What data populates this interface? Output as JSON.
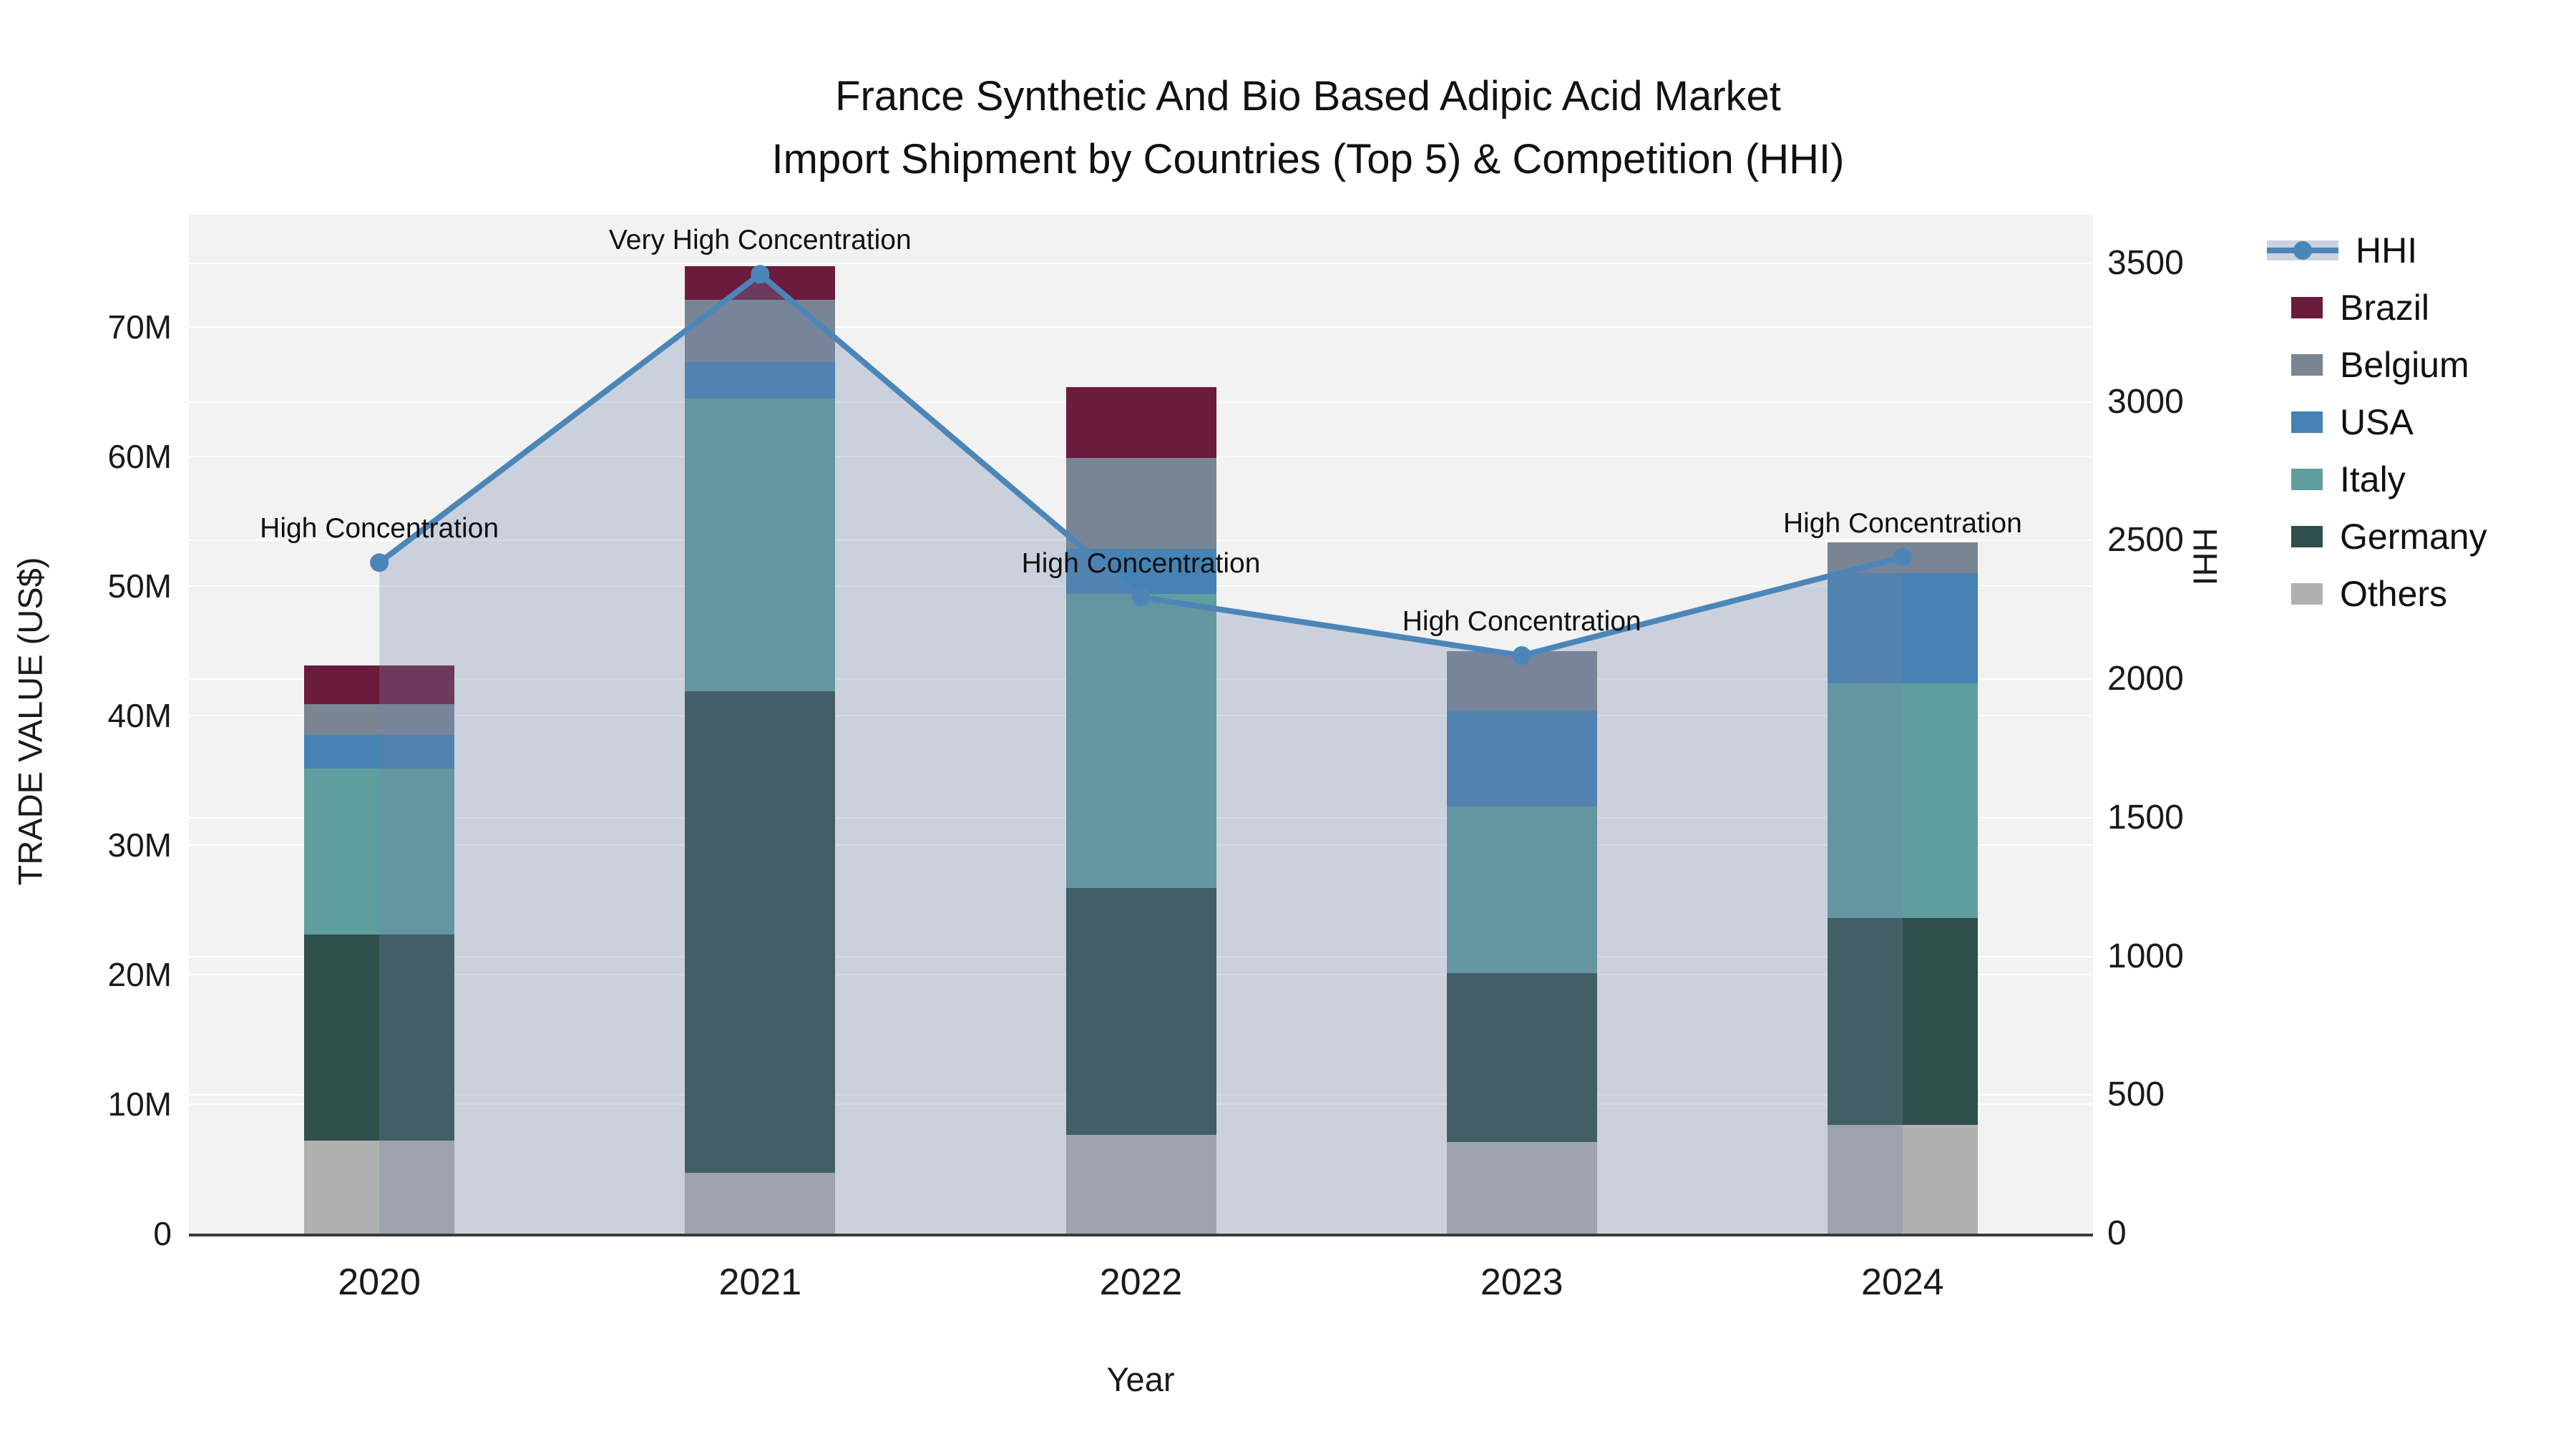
{
  "title": {
    "line1": "France Synthetic And Bio Based Adipic Acid Market",
    "line2": "Import Shipment by Countries (Top 5) & Competition (HHI)"
  },
  "axes": {
    "left": {
      "title": "TRADE VALUE (US$)",
      "ticks": [
        {
          "v": 0,
          "label": "0"
        },
        {
          "v": 10,
          "label": "10M"
        },
        {
          "v": 20,
          "label": "20M"
        },
        {
          "v": 30,
          "label": "30M"
        },
        {
          "v": 40,
          "label": "40M"
        },
        {
          "v": 50,
          "label": "50M"
        },
        {
          "v": 60,
          "label": "60M"
        },
        {
          "v": 70,
          "label": "70M"
        }
      ]
    },
    "right": {
      "title": "HHI",
      "ticks": [
        {
          "v": 0,
          "label": "0"
        },
        {
          "v": 500,
          "label": "500"
        },
        {
          "v": 1000,
          "label": "1000"
        },
        {
          "v": 1500,
          "label": "1500"
        },
        {
          "v": 2000,
          "label": "2000"
        },
        {
          "v": 2500,
          "label": "2500"
        },
        {
          "v": 3000,
          "label": "3000"
        },
        {
          "v": 3500,
          "label": "3500"
        }
      ]
    },
    "x": {
      "title": "Year"
    }
  },
  "chart_data": {
    "type": "bar",
    "subtype": "stacked bars (trade value, left axis) + HHI line with markers and area fill (right axis)",
    "categories": [
      "2020",
      "2021",
      "2022",
      "2023",
      "2024"
    ],
    "value_unit": "million US$",
    "series": [
      {
        "name": "Others",
        "color": "#b0b0b0",
        "values": [
          7.2,
          4.7,
          7.6,
          7.1,
          8.4
        ]
      },
      {
        "name": "Germany",
        "color": "#2f4f4c",
        "values": [
          15.9,
          37.2,
          19.1,
          13.0,
          16.0
        ]
      },
      {
        "name": "Italy",
        "color": "#5f9e9e",
        "values": [
          12.8,
          22.6,
          22.7,
          12.9,
          18.1
        ]
      },
      {
        "name": "USA",
        "color": "#4682b4",
        "values": [
          2.6,
          2.8,
          3.5,
          7.4,
          8.5
        ]
      },
      {
        "name": "Belgium",
        "color": "#7a8594",
        "values": [
          2.4,
          4.8,
          7.0,
          4.6,
          2.4
        ]
      },
      {
        "name": "Brazil",
        "color": "#6b1b3c",
        "values": [
          3.0,
          2.6,
          5.5,
          0,
          0
        ]
      }
    ],
    "bar_totals": [
      43.9,
      74.7,
      65.4,
      45.0,
      53.4
    ],
    "line": {
      "name": "HHI",
      "color": "#4c86b8",
      "area_color": "rgba(114,132,168,0.30)",
      "values": [
        2420,
        3460,
        2295,
        2085,
        2440
      ],
      "annotations": [
        "High Concentration",
        "Very High Concentration",
        "High Concentration",
        "High Concentration",
        "High Concentration"
      ]
    },
    "left_axis_range": [
      0,
      78.7
    ],
    "right_axis_range": [
      0,
      3675
    ],
    "grid": true,
    "legend_position": "right"
  },
  "legend": {
    "items": [
      {
        "label": "HHI",
        "type": "line",
        "color": "#4c86b8"
      },
      {
        "label": "Brazil",
        "type": "box",
        "color": "#6b1b3c"
      },
      {
        "label": "Belgium",
        "type": "box",
        "color": "#7a8594"
      },
      {
        "label": "USA",
        "type": "box",
        "color": "#4682b4"
      },
      {
        "label": "Italy",
        "type": "box",
        "color": "#5f9e9e"
      },
      {
        "label": "Germany",
        "type": "box",
        "color": "#2f4f4c"
      },
      {
        "label": "Others",
        "type": "box",
        "color": "#b0b0b0"
      }
    ]
  }
}
